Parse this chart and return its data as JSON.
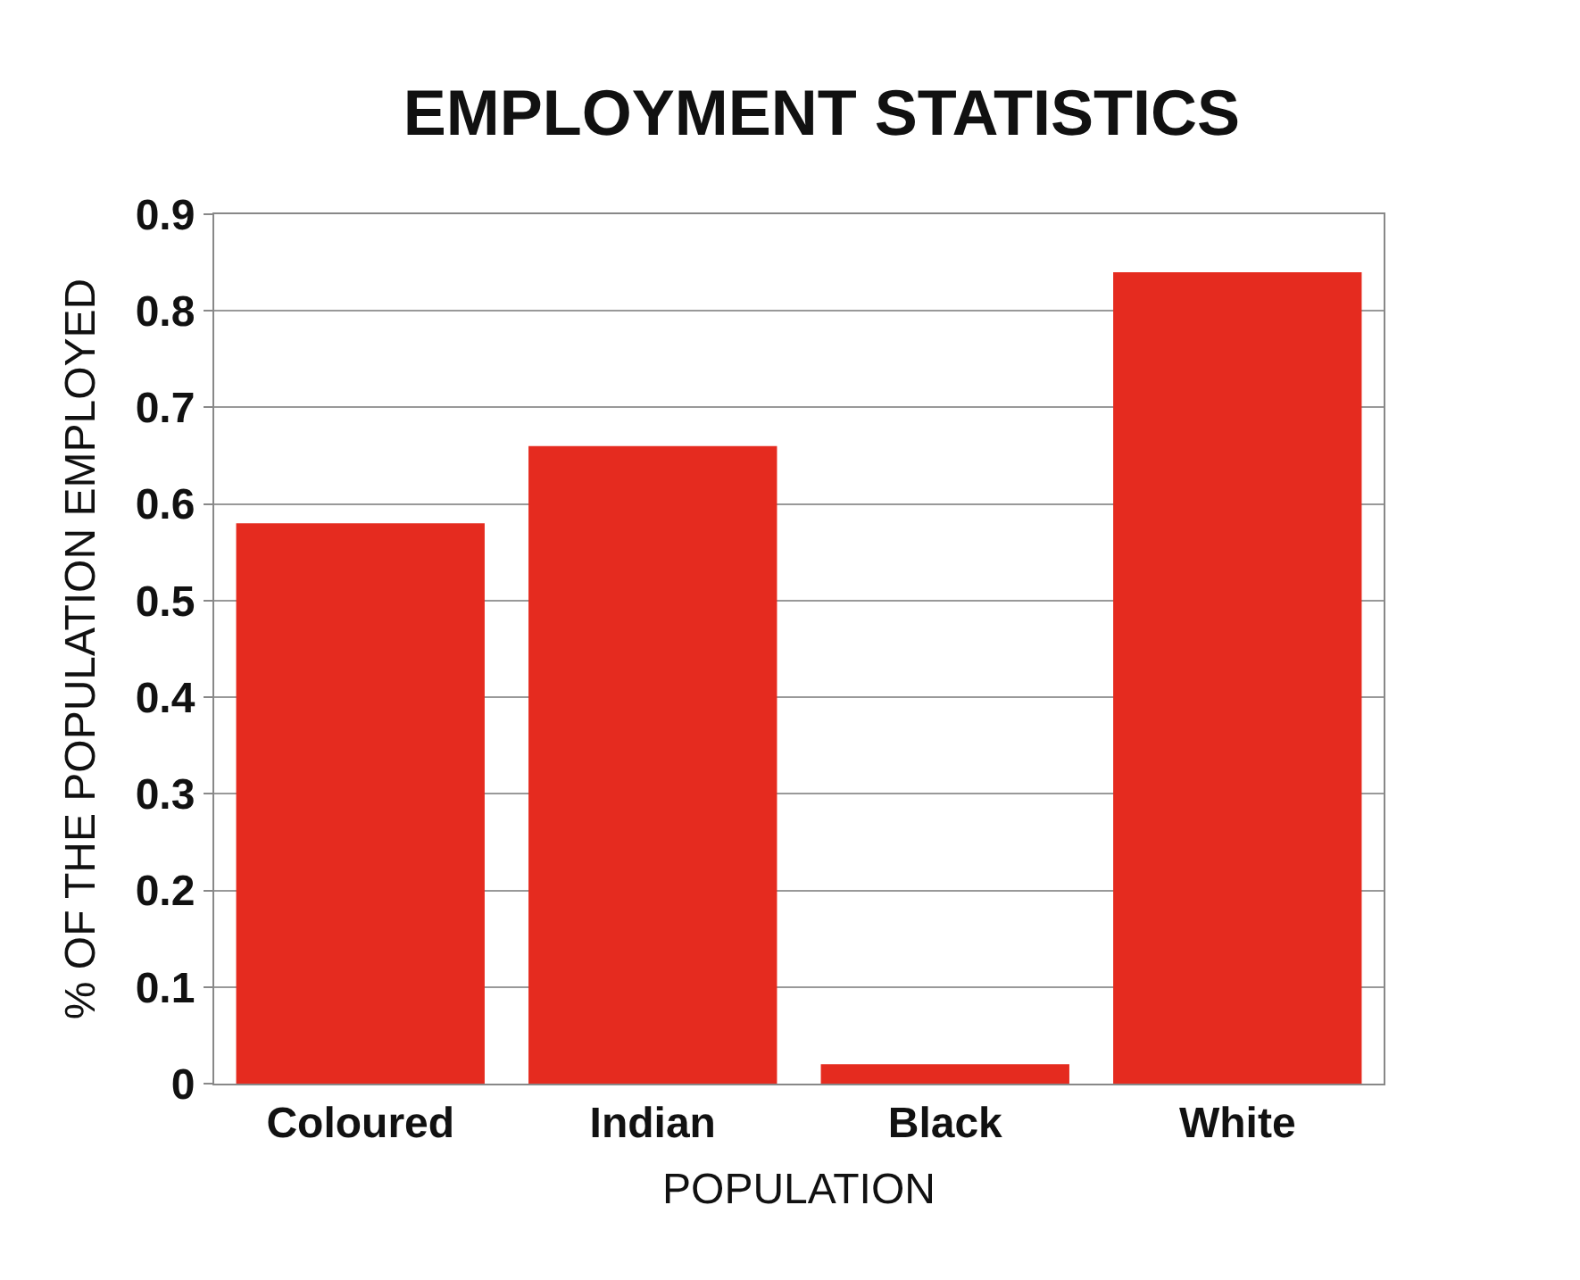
{
  "chart_data": {
    "type": "bar",
    "title": "EMPLOYMENT STATISTICS",
    "xlabel": "POPULATION",
    "ylabel": "% OF THE POPULATION EMPLOYED",
    "categories": [
      "Coloured",
      "Indian",
      "Black",
      "White"
    ],
    "values": [
      0.58,
      0.66,
      0.02,
      0.84
    ],
    "color": "#e52b1f",
    "ylim": [
      0,
      0.9
    ],
    "yticks": [
      0,
      0.1,
      0.2,
      0.3,
      0.4,
      0.5,
      0.6,
      0.7,
      0.8,
      0.9
    ],
    "grid": "y"
  }
}
